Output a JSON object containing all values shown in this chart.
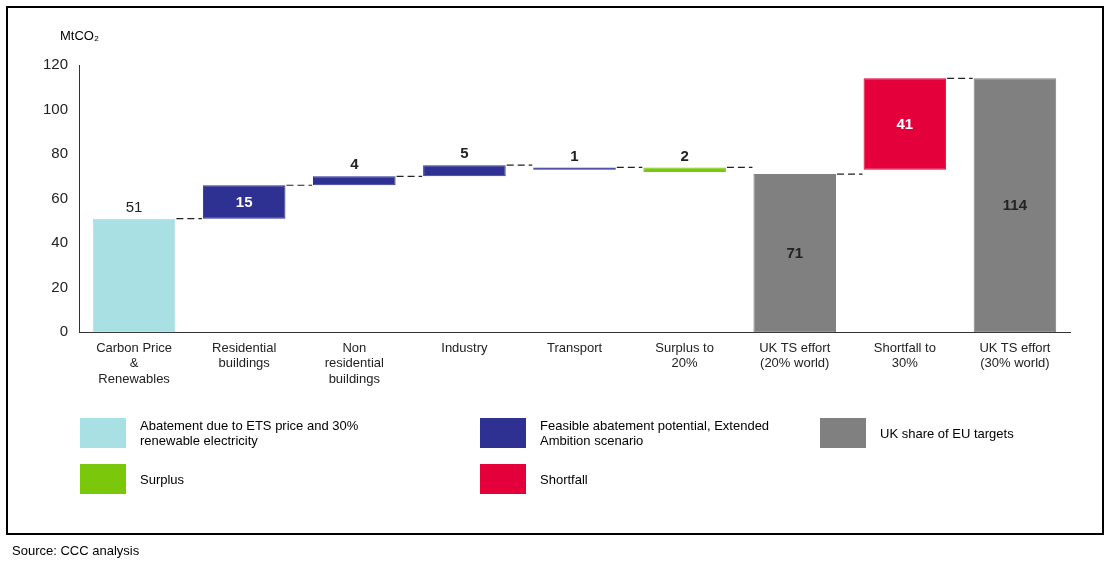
{
  "chart_data": {
    "type": "bar",
    "ylabel": "MtCO₂",
    "categories": [
      "Carbon Price & Renewables",
      "Residential buildings",
      "Non residential buildings",
      "Industry",
      "Transport",
      "Surplus to 20%",
      "UK TS effort (20% world)",
      "Shortfall to 30%",
      "UK TS effort (30% world)"
    ],
    "series": [
      {
        "name": "Abatement due to ETS price and 30% renewable electricity",
        "color": "#a8e0e3",
        "values": [
          51,
          null,
          null,
          null,
          null,
          null,
          null,
          null,
          null
        ],
        "base": [
          0,
          null,
          null,
          null,
          null,
          null,
          null,
          null,
          null
        ]
      },
      {
        "name": "Feasible abatement potential, Extended Ambition scenario",
        "color": "#2e3192",
        "values": [
          null,
          15,
          4,
          5,
          1,
          null,
          null,
          null,
          null
        ],
        "base": [
          null,
          51,
          66,
          70,
          73,
          null,
          null,
          null,
          null
        ]
      },
      {
        "name": "UK share of EU targets",
        "color": "#808080",
        "values": [
          null,
          null,
          null,
          null,
          null,
          null,
          71,
          null,
          114
        ],
        "base": [
          null,
          null,
          null,
          null,
          null,
          null,
          0,
          null,
          0
        ]
      },
      {
        "name": "Surplus",
        "color": "#7ac70c",
        "values": [
          null,
          null,
          null,
          null,
          null,
          2,
          null,
          null,
          null
        ],
        "base": [
          null,
          null,
          null,
          null,
          null,
          72,
          null,
          null,
          null
        ]
      },
      {
        "name": "Shortfall",
        "color": "#e4003a",
        "values": [
          null,
          null,
          null,
          null,
          null,
          null,
          null,
          41,
          null
        ],
        "base": [
          null,
          null,
          null,
          null,
          null,
          null,
          null,
          73,
          null
        ]
      }
    ],
    "ylim": [
      0,
      120
    ],
    "yticks": [
      0,
      20,
      40,
      60,
      80,
      100,
      120
    ],
    "grid": false,
    "legend": "bottom",
    "data_labels": true,
    "annotations": [
      "Source: CCC analysis"
    ]
  }
}
